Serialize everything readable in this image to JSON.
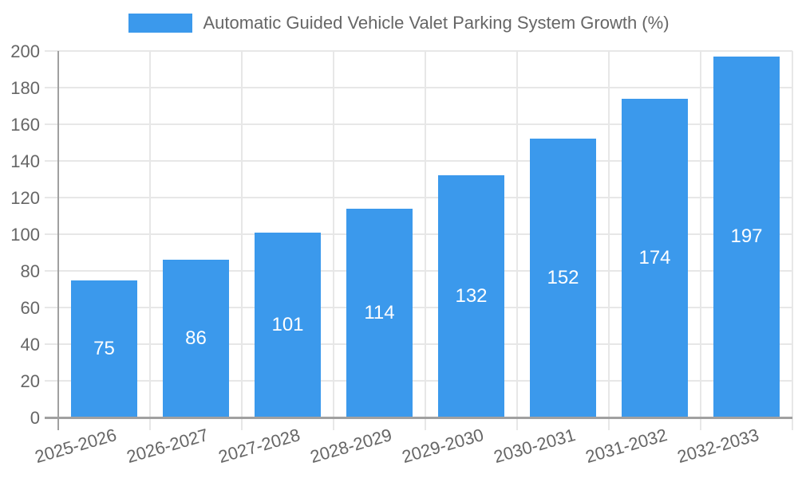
{
  "legend": {
    "label": "Automatic Guided Vehicle Valet Parking System Growth (%)"
  },
  "chart_data": {
    "type": "bar",
    "title": "",
    "xlabel": "",
    "ylabel": "",
    "categories": [
      "2025-2026",
      "2026-2027",
      "2027-2028",
      "2028-2029",
      "2029-2030",
      "2030-2031",
      "2031-2032",
      "2032-2033"
    ],
    "values": [
      75,
      86,
      101,
      114,
      132,
      152,
      174,
      197
    ],
    "series_name": "Automatic Guided Vehicle Valet Parking System Growth (%)",
    "ylim": [
      0,
      200
    ],
    "ytick_step": 20,
    "ytick_labels": [
      "0",
      "20",
      "40",
      "60",
      "80",
      "100",
      "120",
      "140",
      "160",
      "180",
      "200"
    ],
    "grid": true,
    "legend_position": "top",
    "bar_color": "#3b99ec",
    "bar_label_color": "#ffffff",
    "grid_color": "#e7e7e7",
    "axis_color": "#a0a0a0",
    "tick_label_color": "#666666",
    "x_label_rotation_deg": -16
  }
}
